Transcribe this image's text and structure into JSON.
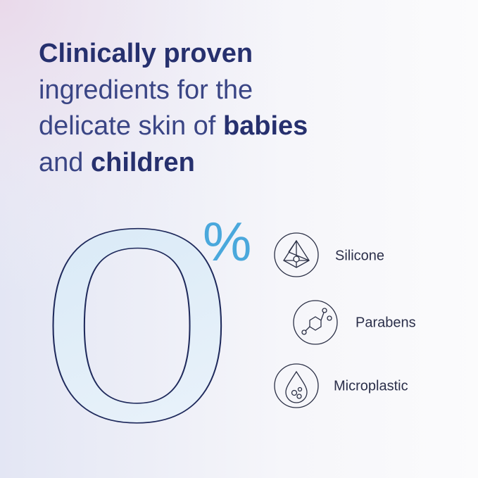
{
  "headline": {
    "line1_bold": "Clinically proven",
    "line2": "ingredients for the",
    "line3": "delicate skin of",
    "line3_bold": "babies",
    "line4": "and",
    "line4_bold": "children"
  },
  "claim": {
    "number": "0",
    "unit": "%"
  },
  "items": [
    {
      "label": "Silicone"
    },
    {
      "label": "Parabens"
    },
    {
      "label": "Microplastic"
    }
  ]
}
